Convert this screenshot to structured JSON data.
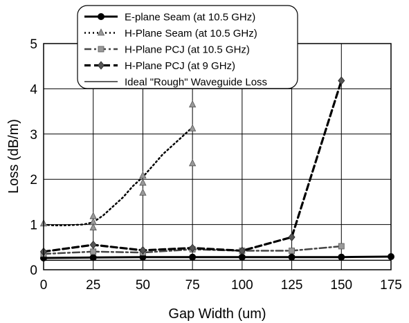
{
  "chart_data": {
    "type": "line",
    "xlabel": "Gap Width (um)",
    "ylabel": "Loss (dB/m)",
    "xlim": [
      0,
      175
    ],
    "ylim": [
      0,
      5
    ],
    "xticks": [
      0,
      25,
      50,
      75,
      100,
      125,
      150,
      175
    ],
    "yticks": [
      0,
      1,
      2,
      3,
      4,
      5
    ],
    "grid": true,
    "legend_position": "top-center",
    "series": [
      {
        "name": "E-plane Seam (at 10.5 GHz)",
        "style": "solid-thick",
        "marker": "circle",
        "color": "#000000",
        "x": [
          0,
          25,
          50,
          75,
          100,
          125,
          150,
          175
        ],
        "y": [
          0.26,
          0.27,
          0.28,
          0.28,
          0.28,
          0.28,
          0.28,
          0.29
        ]
      },
      {
        "name": "H-Plane Seam (at 10.5 GHz)",
        "style": "dotted",
        "marker": "triangle",
        "color": "#999999",
        "x": [
          0,
          25,
          25,
          25,
          50,
          50,
          50,
          75,
          75,
          75
        ],
        "y": [
          1.02,
          1.18,
          1.05,
          0.93,
          2.08,
          1.92,
          1.7,
          3.65,
          3.12,
          2.35
        ],
        "line_x": [
          0,
          5,
          10,
          15,
          20,
          25,
          30,
          35,
          40,
          45,
          50,
          55,
          60,
          65,
          70,
          75
        ],
        "line_y": [
          1.0,
          0.98,
          0.98,
          0.99,
          1.0,
          1.05,
          1.2,
          1.4,
          1.6,
          1.85,
          2.05,
          2.3,
          2.55,
          2.75,
          2.95,
          3.15
        ]
      },
      {
        "name": "H-Plane PCJ (at 10.5 GHz)",
        "style": "dash-dot",
        "marker": "square",
        "color": "#999999",
        "x": [
          0,
          25,
          50,
          75,
          100,
          125,
          150
        ],
        "y": [
          0.35,
          0.4,
          0.38,
          0.45,
          0.42,
          0.42,
          0.52
        ]
      },
      {
        "name": "H-Plane PCJ (at 9 GHz)",
        "style": "dashed-thick",
        "marker": "diamond",
        "color": "#555555",
        "x": [
          0,
          25,
          50,
          75,
          100,
          125,
          150
        ],
        "y": [
          0.4,
          0.55,
          0.43,
          0.48,
          0.42,
          0.72,
          4.18
        ]
      },
      {
        "name": "Ideal \"Rough\" Waveguide Loss",
        "style": "solid-thin",
        "marker": "none",
        "color": "#000000",
        "x": [
          0,
          175
        ],
        "y": [
          0.21,
          0.21
        ]
      }
    ]
  }
}
